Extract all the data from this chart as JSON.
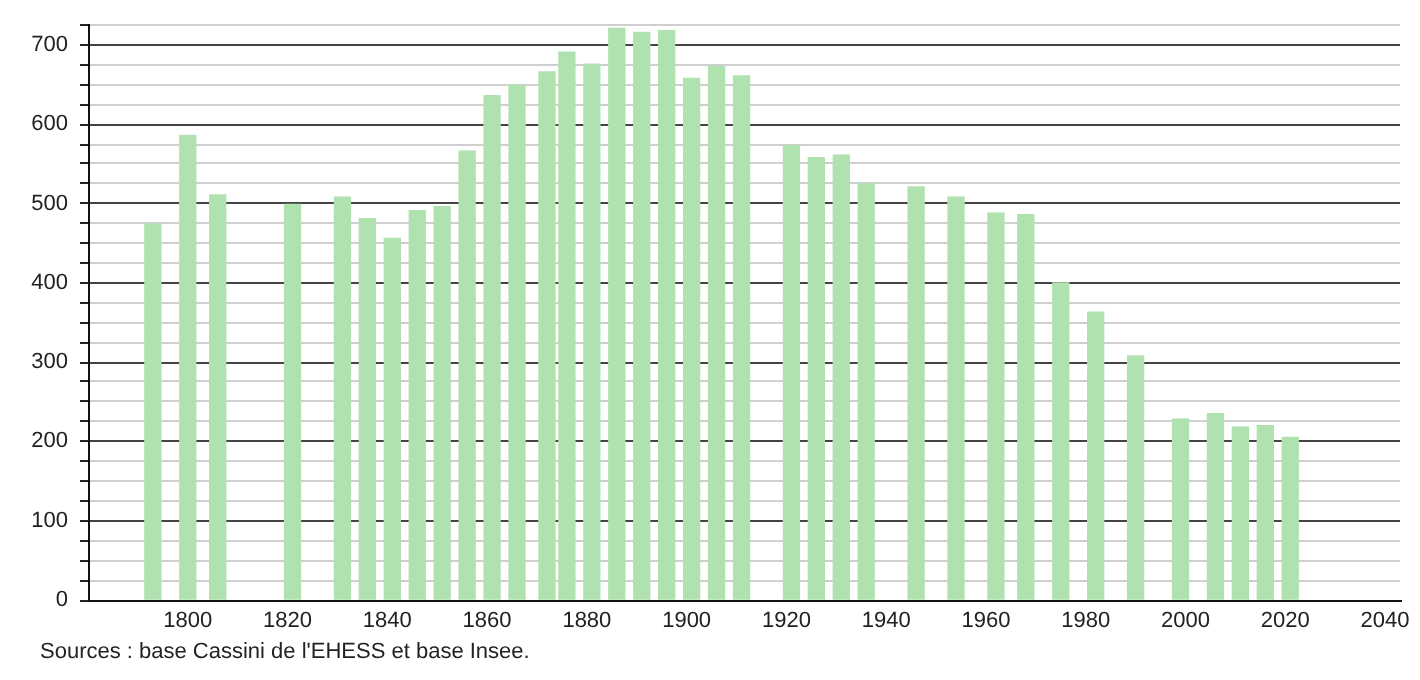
{
  "chart_data": {
    "type": "bar",
    "x": [
      1793,
      1800,
      1806,
      1821,
      1831,
      1836,
      1841,
      1846,
      1851,
      1856,
      1861,
      1866,
      1872,
      1876,
      1881,
      1886,
      1891,
      1896,
      1901,
      1906,
      1911,
      1921,
      1926,
      1931,
      1936,
      1946,
      1954,
      1962,
      1968,
      1975,
      1982,
      1990,
      1999,
      2006,
      2011,
      2016,
      2021
    ],
    "values": [
      474,
      586,
      511,
      499,
      508,
      481,
      456,
      491,
      496,
      566,
      636,
      649,
      666,
      691,
      676,
      721,
      716,
      718,
      658,
      673,
      661,
      573,
      558,
      561,
      525,
      521,
      508,
      488,
      486,
      400,
      363,
      308,
      228,
      235,
      218,
      220,
      205
    ],
    "color": "#b0e2b0",
    "xlim": [
      1780,
      2043
    ],
    "xticks": [
      1800,
      1820,
      1840,
      1860,
      1880,
      1900,
      1920,
      1940,
      1960,
      1980,
      2000,
      2020,
      2040
    ],
    "ylim": [
      0,
      725
    ],
    "yticks": [
      0,
      {
        "value": 25,
        "label": null
      },
      {
        "value": 50,
        "label": null
      },
      {
        "value": 75,
        "label": null
      },
      100,
      {
        "value": 125,
        "label": null
      },
      {
        "value": 150,
        "label": null
      },
      {
        "value": 175,
        "label": null
      },
      200,
      {
        "value": 225,
        "label": null
      },
      {
        "value": 250,
        "label": null
      },
      {
        "value": 275,
        "label": null
      },
      300,
      {
        "value": 325,
        "label": null
      },
      {
        "value": 350,
        "label": null
      },
      {
        "value": 375,
        "label": null
      },
      400,
      {
        "value": 425,
        "label": null
      },
      {
        "value": 450,
        "label": null
      },
      {
        "value": 475,
        "label": null
      },
      500,
      {
        "value": 525,
        "label": null
      },
      {
        "value": 550,
        "label": null
      },
      {
        "value": 575,
        "label": null
      },
      600,
      {
        "value": 625,
        "label": null
      },
      {
        "value": 650,
        "label": null
      },
      {
        "value": 675,
        "label": null
      },
      700,
      {
        "value": 725,
        "label": null
      }
    ],
    "grid": "y",
    "annotations": [
      "Sources : base Cassini de l'EHESS et base Insee."
    ]
  }
}
